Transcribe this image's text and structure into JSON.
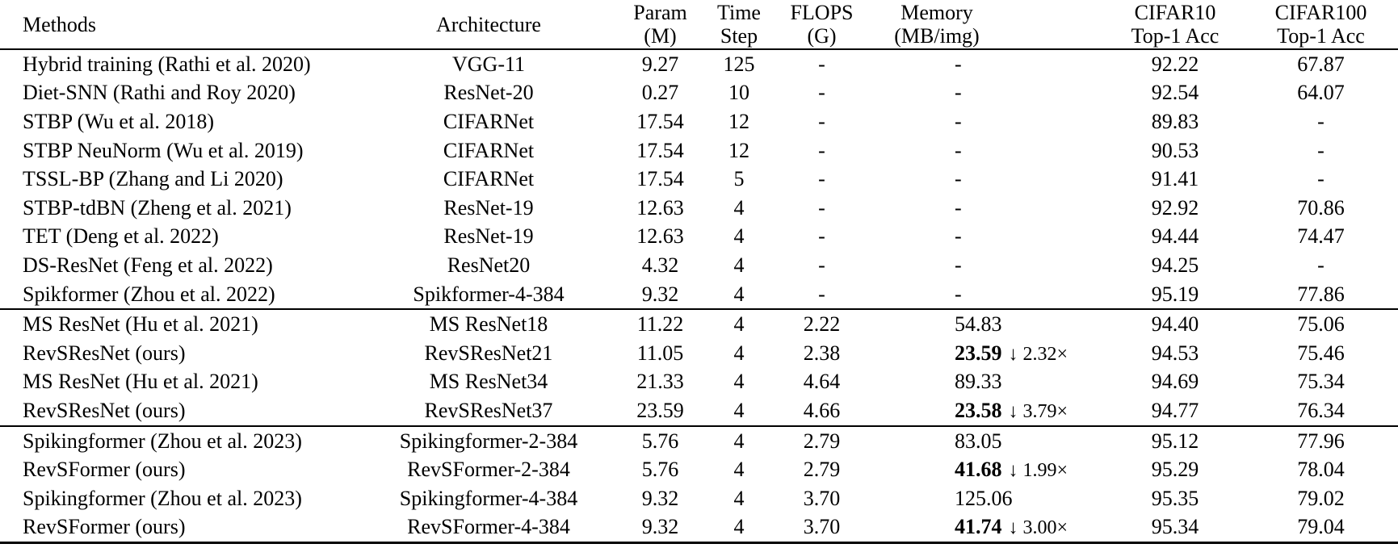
{
  "table": {
    "columns": [
      {
        "line1": "Methods",
        "line2": ""
      },
      {
        "line1": "Architecture",
        "line2": ""
      },
      {
        "line1": "Param",
        "line2": "(M)"
      },
      {
        "line1": "Time",
        "line2": "Step"
      },
      {
        "line1": "FLOPS",
        "line2": "(G)"
      },
      {
        "line1": "Memory",
        "line2": "(MB/img)"
      },
      {
        "line1": "CIFAR10",
        "line2": "Top-1 Acc"
      },
      {
        "line1": "CIFAR100",
        "line2": "Top-1 Acc"
      }
    ],
    "groups": [
      {
        "rows": [
          {
            "method": "Hybrid training (Rathi et al. 2020)",
            "architecture": "VGG-11",
            "param": "9.27",
            "time_step": "125",
            "flops": "-",
            "memory": "-",
            "memory_bold": false,
            "memory_note": "",
            "cifar10": "92.22",
            "cifar100": "67.87"
          },
          {
            "method": "Diet-SNN (Rathi and Roy 2020)",
            "architecture": "ResNet-20",
            "param": "0.27",
            "time_step": "10",
            "flops": "-",
            "memory": "-",
            "memory_bold": false,
            "memory_note": "",
            "cifar10": "92.54",
            "cifar100": "64.07"
          },
          {
            "method": "STBP (Wu et al. 2018)",
            "architecture": "CIFARNet",
            "param": "17.54",
            "time_step": "12",
            "flops": "-",
            "memory": "-",
            "memory_bold": false,
            "memory_note": "",
            "cifar10": "89.83",
            "cifar100": "-"
          },
          {
            "method": "STBP NeuNorm (Wu et al. 2019)",
            "architecture": "CIFARNet",
            "param": "17.54",
            "time_step": "12",
            "flops": "-",
            "memory": "-",
            "memory_bold": false,
            "memory_note": "",
            "cifar10": "90.53",
            "cifar100": "-"
          },
          {
            "method": "TSSL-BP (Zhang and Li 2020)",
            "architecture": "CIFARNet",
            "param": "17.54",
            "time_step": "5",
            "flops": "-",
            "memory": "-",
            "memory_bold": false,
            "memory_note": "",
            "cifar10": "91.41",
            "cifar100": "-"
          },
          {
            "method": "STBP-tdBN (Zheng et al. 2021)",
            "architecture": "ResNet-19",
            "param": "12.63",
            "time_step": "4",
            "flops": "-",
            "memory": "-",
            "memory_bold": false,
            "memory_note": "",
            "cifar10": "92.92",
            "cifar100": "70.86"
          },
          {
            "method": "TET (Deng et al. 2022)",
            "architecture": "ResNet-19",
            "param": "12.63",
            "time_step": "4",
            "flops": "-",
            "memory": "-",
            "memory_bold": false,
            "memory_note": "",
            "cifar10": "94.44",
            "cifar100": "74.47"
          },
          {
            "method": "DS-ResNet (Feng et al. 2022)",
            "architecture": "ResNet20",
            "param": "4.32",
            "time_step": "4",
            "flops": "-",
            "memory": "-",
            "memory_bold": false,
            "memory_note": "",
            "cifar10": "94.25",
            "cifar100": "-"
          },
          {
            "method": "Spikformer (Zhou et al. 2022)",
            "architecture": "Spikformer-4-384",
            "param": "9.32",
            "time_step": "4",
            "flops": "-",
            "memory": "-",
            "memory_bold": false,
            "memory_note": "",
            "cifar10": "95.19",
            "cifar100": "77.86"
          }
        ]
      },
      {
        "rows": [
          {
            "method": "MS ResNet (Hu et al. 2021)",
            "architecture": "MS ResNet18",
            "param": "11.22",
            "time_step": "4",
            "flops": "2.22",
            "memory": "54.83",
            "memory_bold": false,
            "memory_note": "",
            "cifar10": "94.40",
            "cifar100": "75.06"
          },
          {
            "method": "RevSResNet (ours)",
            "architecture": "RevSResNet21",
            "param": "11.05",
            "time_step": "4",
            "flops": "2.38",
            "memory": "23.59",
            "memory_bold": true,
            "memory_note": "↓ 2.32×",
            "cifar10": "94.53",
            "cifar100": "75.46"
          },
          {
            "method": "MS ResNet (Hu et al. 2021)",
            "architecture": "MS ResNet34",
            "param": "21.33",
            "time_step": "4",
            "flops": "4.64",
            "memory": "89.33",
            "memory_bold": false,
            "memory_note": "",
            "cifar10": "94.69",
            "cifar100": "75.34"
          },
          {
            "method": "RevSResNet (ours)",
            "architecture": "RevSResNet37",
            "param": "23.59",
            "time_step": "4",
            "flops": "4.66",
            "memory": "23.58",
            "memory_bold": true,
            "memory_note": "↓ 3.79×",
            "cifar10": "94.77",
            "cifar100": "76.34"
          }
        ]
      },
      {
        "rows": [
          {
            "method": "Spikingformer (Zhou et al. 2023)",
            "architecture": "Spikingformer-2-384",
            "param": "5.76",
            "time_step": "4",
            "flops": "2.79",
            "memory": "83.05",
            "memory_bold": false,
            "memory_note": "",
            "cifar10": "95.12",
            "cifar100": "77.96"
          },
          {
            "method": "RevSFormer (ours)",
            "architecture": "RevSFormer-2-384",
            "param": "5.76",
            "time_step": "4",
            "flops": "2.79",
            "memory": "41.68",
            "memory_bold": true,
            "memory_note": "↓ 1.99×",
            "cifar10": "95.29",
            "cifar100": "78.04"
          },
          {
            "method": "Spikingformer (Zhou et al. 2023)",
            "architecture": "Spikingformer-4-384",
            "param": "9.32",
            "time_step": "4",
            "flops": "3.70",
            "memory": "125.06",
            "memory_bold": false,
            "memory_note": "",
            "cifar10": "95.35",
            "cifar100": "79.02"
          },
          {
            "method": "RevSFormer (ours)",
            "architecture": "RevSFormer-4-384",
            "param": "9.32",
            "time_step": "4",
            "flops": "3.70",
            "memory": "41.74",
            "memory_bold": true,
            "memory_note": "↓ 3.00×",
            "cifar10": "95.34",
            "cifar100": "79.04"
          }
        ]
      }
    ]
  }
}
